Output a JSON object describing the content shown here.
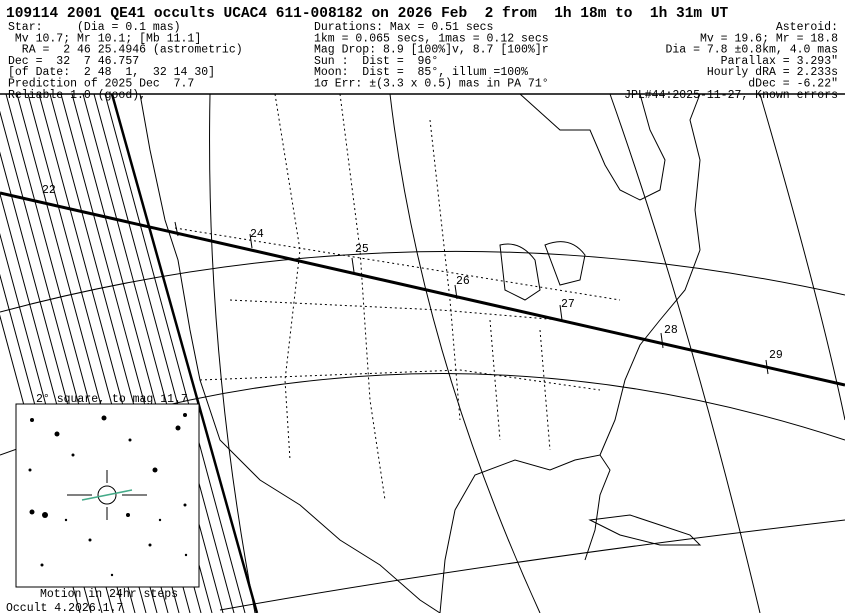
{
  "header": {
    "title": "109114 2001 QE41 occults UCAC4 611-008182 on 2026 Feb  2 from  1h 18m to  1h 31m UT",
    "star": [
      "Star:     (Dia = 0.1 mas)",
      " Mv 10.7; Mr 10.1; [Mb 11.1]",
      "  RA =  2 46 25.4946 (astrometric)",
      "Dec =  32  7 46.757",
      "[of Date:  2 48  1,  32 14 30]",
      "Prediction of 2025 Dec  7.7",
      "Reliable 1.0 (good),"
    ],
    "event": [
      "Durations: Max = 0.51 secs",
      "1km = 0.065 secs, 1mas = 0.12 secs",
      "Mag Drop: 8.9 [100%]v, 8.7 [100%]r",
      "Sun :  Dist =  96°",
      "Moon:  Dist =  85°, illum =100%",
      "1σ Err: ±(3.3 x 0.5) mas in PA 71°"
    ],
    "asteroid": [
      "Asteroid:",
      "Mv = 19.6; Mr = 18.8",
      "Dia = 7.8 ±0.8km, 4.0 mas",
      "Parallax = 3.293\"",
      "Hourly dRA = 2.233s",
      "dDec = -6.22\"",
      "JPL#44:2025-11-27, Known errors"
    ]
  },
  "path_labels": [
    "22",
    "24",
    "25",
    "26",
    "27",
    "28",
    "29"
  ],
  "inset": {
    "title": "2° square, to mag 11.7",
    "caption": "Motion in 24hr steps"
  },
  "footer": "Occult 4.2026.1.7"
}
